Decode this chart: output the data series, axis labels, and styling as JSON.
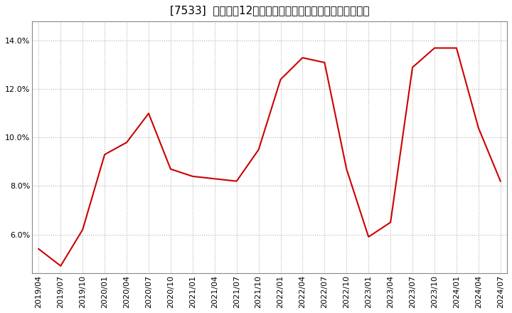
{
  "title": "[7533]  売上高の12か月移動合計の対前年同期増減率の推移",
  "line_color": "#cc0000",
  "bg_color": "#ffffff",
  "plot_bg_color": "#ffffff",
  "grid_color": "#aaaaaa",
  "ylim": [
    0.044,
    0.148
  ],
  "yticks": [
    0.06,
    0.08,
    0.1,
    0.12,
    0.14
  ],
  "ytick_labels": [
    "6.0%",
    "8.0%",
    "10.0%",
    "12.0%",
    "14.0%"
  ],
  "x_labels": [
    "2019/04",
    "2019/07",
    "2019/10",
    "2020/01",
    "2020/04",
    "2020/07",
    "2020/10",
    "2021/01",
    "2021/04",
    "2021/07",
    "2021/10",
    "2022/01",
    "2022/04",
    "2022/07",
    "2022/10",
    "2023/01",
    "2023/04",
    "2023/07",
    "2023/10",
    "2024/01",
    "2024/04",
    "2024/07"
  ],
  "x_values": [
    0,
    1,
    2,
    3,
    4,
    5,
    6,
    7,
    8,
    9,
    10,
    11,
    12,
    13,
    14,
    15,
    16,
    17,
    18,
    19,
    20,
    21
  ],
  "y_values": [
    0.054,
    0.047,
    0.062,
    0.093,
    0.098,
    0.11,
    0.087,
    0.084,
    0.083,
    0.082,
    0.095,
    0.124,
    0.133,
    0.131,
    0.087,
    0.059,
    0.065,
    0.129,
    0.137,
    0.137,
    0.104,
    0.082
  ],
  "title_fontsize": 11,
  "tick_fontsize": 8,
  "line_width": 1.5
}
